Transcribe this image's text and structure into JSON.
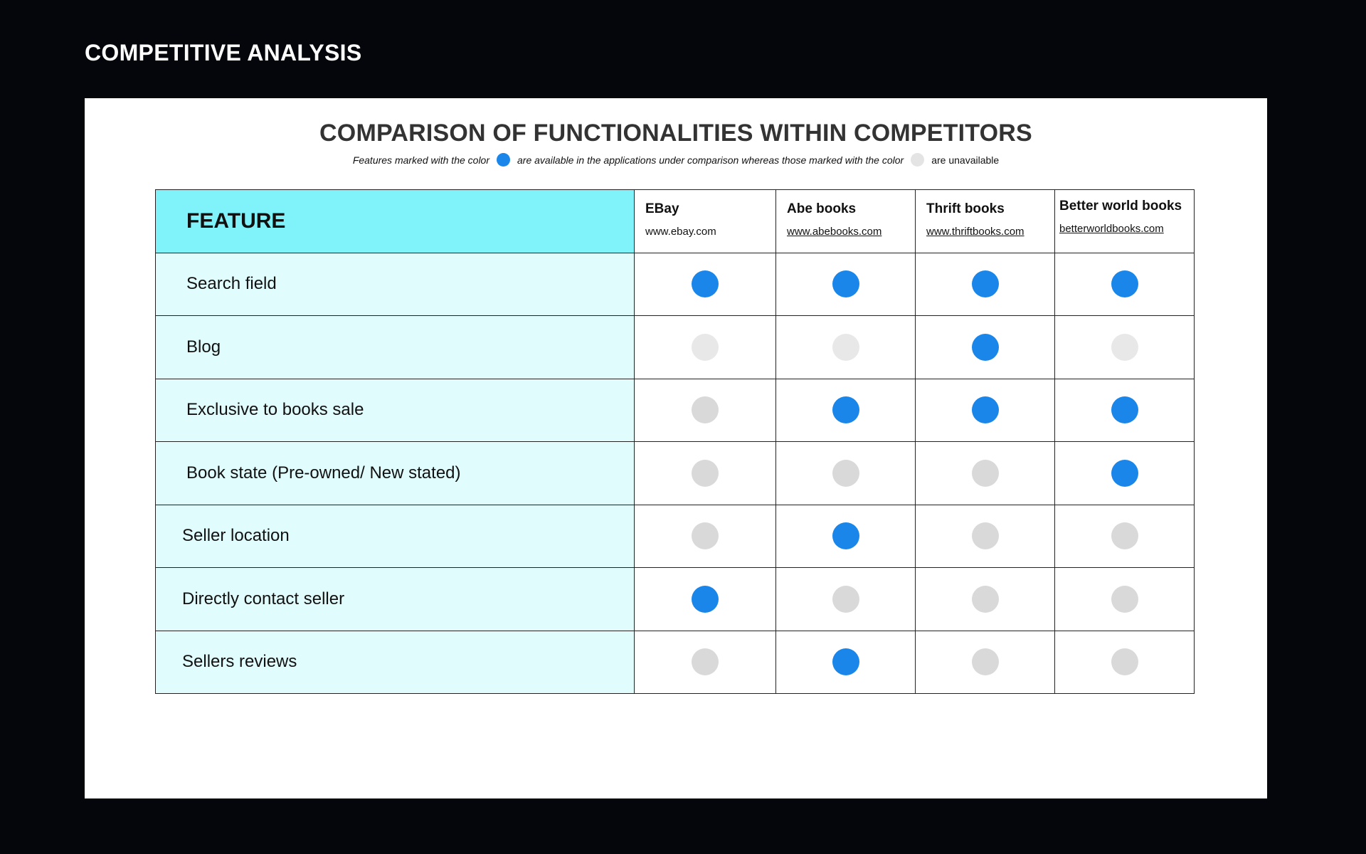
{
  "page_title": "COMPETITIVE ANALYSIS",
  "chart_title": "COMPARISON OF FUNCTIONALITIES WITHIN COMPETITORS",
  "legend": {
    "part1": "Features marked with the color",
    "part2": "are available in the applications under comparison whereas those marked with the color",
    "part3": "are unavailable",
    "available_color": "#1a86ea",
    "unavailable_color": "#e4e4e4"
  },
  "table": {
    "feature_header": "FEATURE",
    "competitors": [
      {
        "name": "EBay",
        "url": "www.ebay.com"
      },
      {
        "name": "Abe books",
        "url": "www.abebooks.com"
      },
      {
        "name": "Thrift books",
        "url": "www.thriftbooks.com"
      },
      {
        "name": "Better world books",
        "url": "betterworldbooks.com"
      }
    ],
    "rows": [
      {
        "feature": "Search field",
        "availability": [
          true,
          true,
          true,
          true
        ]
      },
      {
        "feature": "Blog",
        "availability": [
          false,
          false,
          true,
          false
        ]
      },
      {
        "feature": "Exclusive to books sale",
        "availability": [
          false,
          true,
          true,
          true
        ]
      },
      {
        "feature": "Book state (Pre-owned/ New stated)",
        "availability": [
          false,
          false,
          false,
          true
        ]
      },
      {
        "feature": "Seller location",
        "availability": [
          false,
          true,
          false,
          false
        ]
      },
      {
        "feature": "Directly contact seller",
        "availability": [
          true,
          false,
          false,
          false
        ]
      },
      {
        "feature": "Sellers reviews",
        "availability": [
          false,
          true,
          false,
          false
        ]
      }
    ]
  }
}
